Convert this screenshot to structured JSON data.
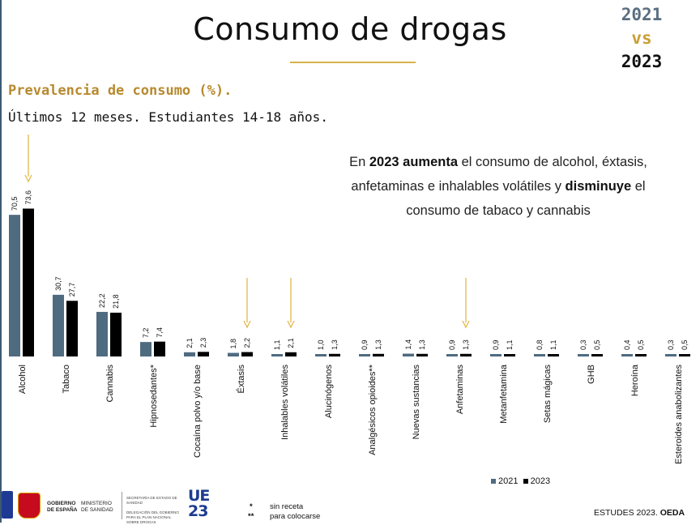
{
  "header": {
    "title": "Consumo de drogas",
    "year_a": "2021",
    "vs": "vs",
    "year_b": "2023",
    "subtitle": "Prevalencia de consumo (%).",
    "subtitle2": "Últimos 12 meses. Estudiantes 14-18 años."
  },
  "note": {
    "p1": "En ",
    "b1": "2023 aumenta",
    "p2": " el consumo de alcohol, éxtasis, anfetaminas e inhalables volátiles y ",
    "b2": "disminuye",
    "p3": " el consumo de tabaco y cannabis"
  },
  "chart_data": {
    "type": "bar",
    "title": "",
    "xlabel": "",
    "ylabel": "",
    "categories": [
      "Alcohol",
      "Tabaco",
      "Cannabis",
      "Hipnosedantes*",
      "Cocaína polvo y/o base",
      "Éxtasis",
      "Inhalables volátiles",
      "Alucinógenos",
      "Analgésicos opioides**",
      "Nuevas sustancias",
      "Anfetaminas",
      "Metanfetamina",
      "Setas mágicas",
      "GHB",
      "Heroína",
      "Esteroides anabolizantes"
    ],
    "series": [
      {
        "name": "2021",
        "color": "#4f6b80",
        "values": [
          70.5,
          30.7,
          22.2,
          7.2,
          2.1,
          1.8,
          1.1,
          1.0,
          0.9,
          1.4,
          0.9,
          0.9,
          0.8,
          0.3,
          0.4,
          0.3
        ],
        "labels": [
          "70,5",
          "30,7",
          "22,2",
          "7,2",
          "2,1",
          "1,8",
          "1,1",
          "1,0",
          "0,9",
          "1,4",
          "0,9",
          "0,9",
          "0,8",
          "0,3",
          "0,4",
          "0,3"
        ]
      },
      {
        "name": "2023",
        "color": "#000000",
        "values": [
          73.6,
          27.7,
          21.8,
          7.4,
          2.3,
          2.2,
          2.1,
          1.3,
          1.3,
          1.3,
          1.3,
          1.1,
          1.1,
          0.5,
          0.5,
          0.5
        ],
        "labels": [
          "73,6",
          "27,7",
          "21,8",
          "7,4",
          "2,3",
          "2,2",
          "2,1",
          "1,3",
          "1,3",
          "1,3",
          "1,3",
          "1,1",
          "1,1",
          "0,5",
          "0,5",
          "0,5"
        ]
      }
    ],
    "highlighted_categories": [
      "Alcohol",
      "Éxtasis",
      "Inhalables volátiles",
      "Anfetaminas"
    ],
    "legend_position": "bottom-right",
    "grid": false
  },
  "footer": {
    "gov_line1": "GOBIERNO",
    "gov_line2": "DE ESPAÑA",
    "min_line1": "MINISTERIO",
    "min_line2": "DE SANIDAD",
    "deleg1": "SECRETARÍA DE ESTADO DE SANIDAD",
    "deleg2": "DELEGACIÓN DEL GOBIERNO PARA EL PLAN NACIONAL SOBRE DROGAS",
    "ue_top": "UE",
    "ue_bottom": "23",
    "fn1_mark": "*",
    "fn1": "sin receta",
    "fn2_mark": "**",
    "fn2": "para colocarse",
    "source_prefix": "ESTUDES 2023. ",
    "source_bold": "OEDA"
  }
}
